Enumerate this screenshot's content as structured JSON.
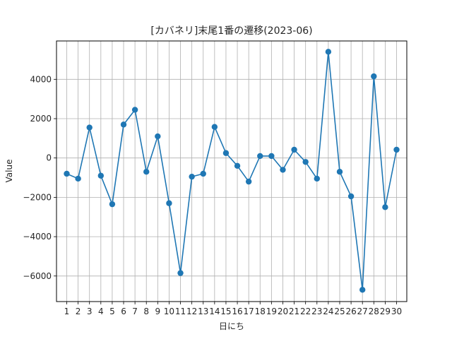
{
  "chart_data": {
    "type": "line",
    "title": "[カバネリ]末尾1番の遷移(2023-06)",
    "xlabel": "日にち",
    "ylabel": "Value",
    "x": [
      1,
      2,
      3,
      4,
      5,
      6,
      7,
      8,
      9,
      10,
      11,
      12,
      13,
      14,
      15,
      16,
      17,
      18,
      19,
      20,
      21,
      22,
      23,
      24,
      25,
      26,
      27,
      28,
      29,
      30
    ],
    "series": [
      {
        "values": [
          -800,
          -1050,
          1550,
          -900,
          -2350,
          1700,
          2450,
          -700,
          1100,
          -2300,
          -5850,
          -950,
          -800,
          1580,
          250,
          -400,
          -1200,
          100,
          100,
          -600,
          420,
          -200,
          -1050,
          5400,
          -700,
          -1950,
          -6700,
          4150,
          -2500,
          420
        ],
        "color": "#1f77b4"
      }
    ],
    "xlim": [
      0.1,
      30.9
    ],
    "ylim": [
      -7300,
      5950
    ],
    "yticks": [
      -6000,
      -4000,
      -2000,
      0,
      2000,
      4000
    ],
    "grid": true,
    "colors": {
      "line": "#1f77b4",
      "grid": "#b0b0b0",
      "axis": "#000000"
    }
  }
}
